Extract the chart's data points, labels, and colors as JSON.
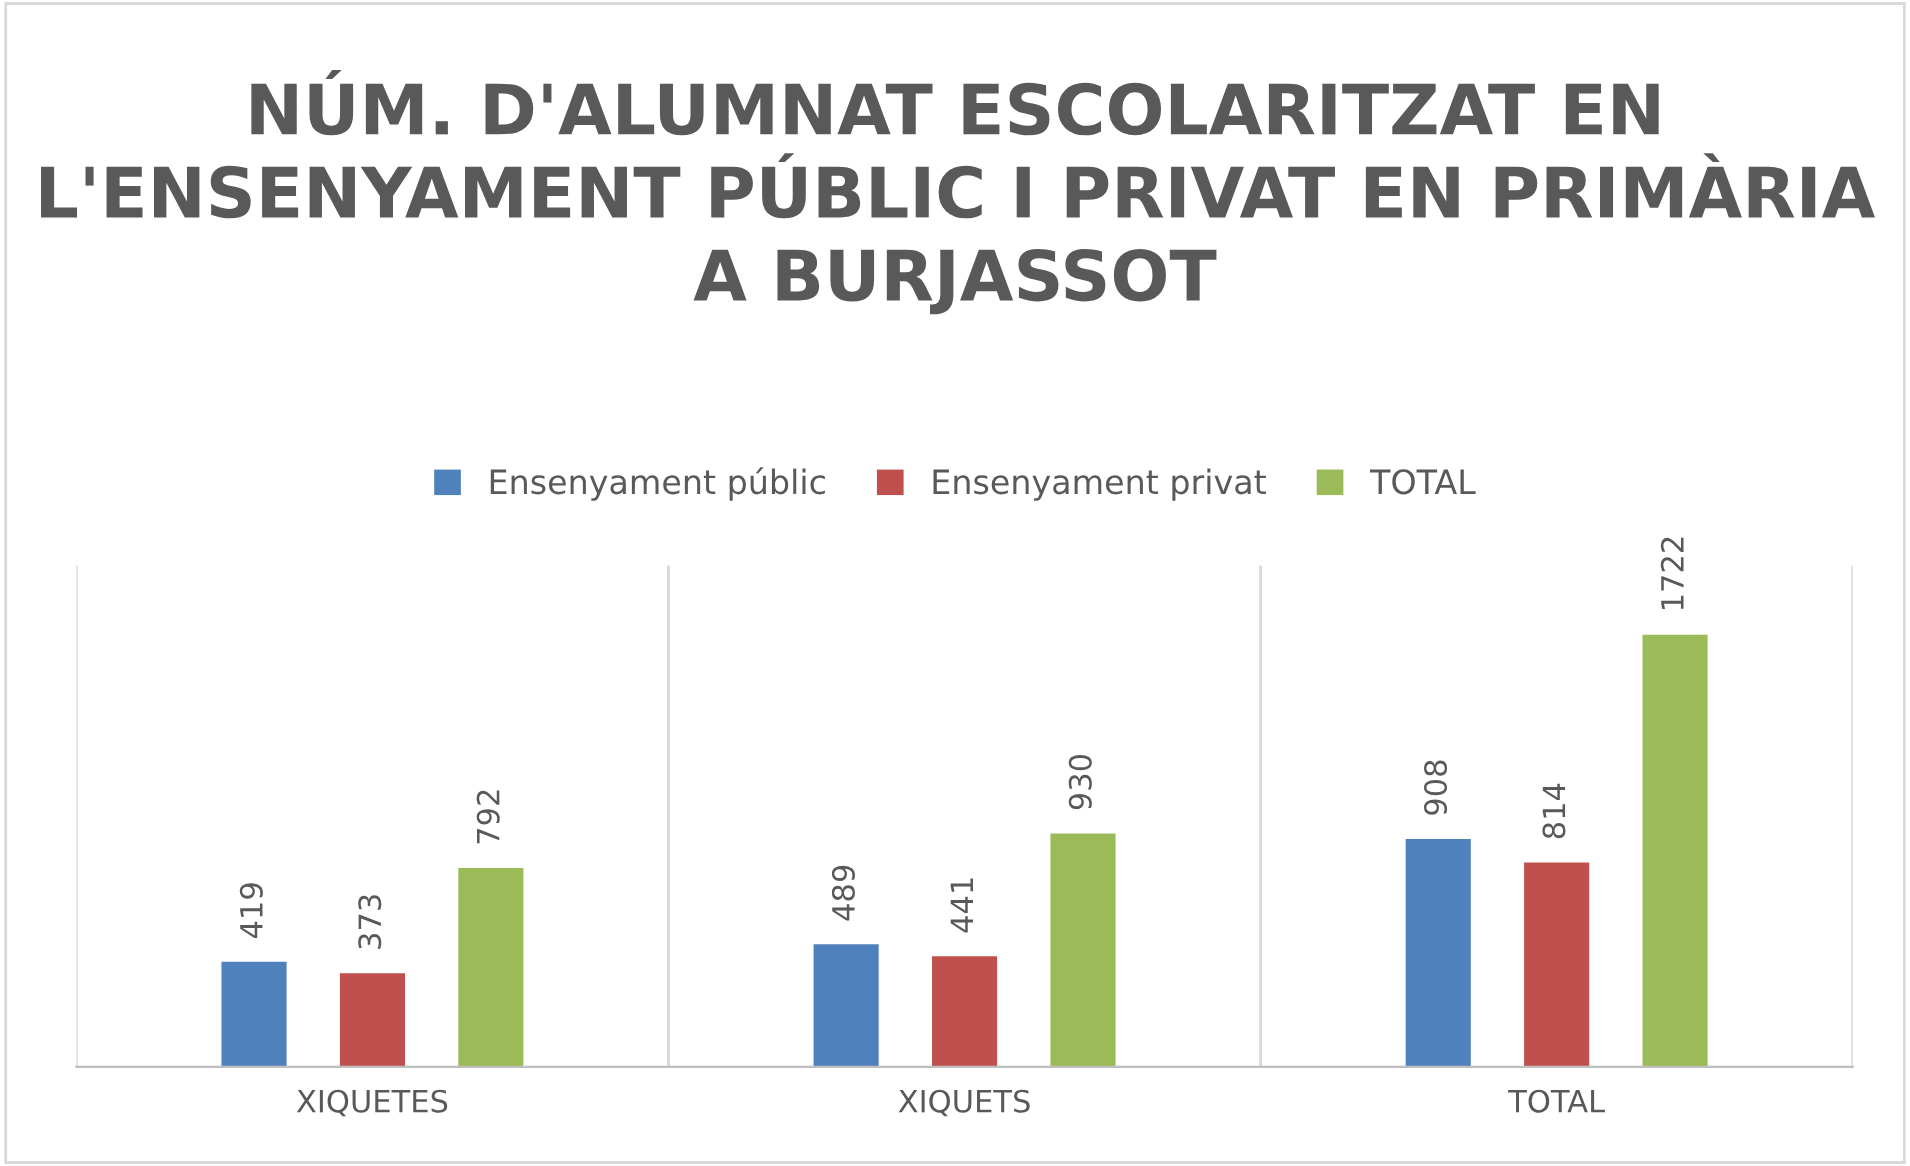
{
  "chart_data": {
    "type": "bar",
    "title": "NÚM. D'ALUMNAT ESCOLARITZAT EN L'ENSENYAMENT PÚBLIC I PRIVAT EN PRIMÀRIA A BURJASSOT",
    "categories": [
      "XIQUETES",
      "XIQUETS",
      "TOTAL"
    ],
    "series": [
      {
        "name": "Ensenyament públic",
        "color": "#4f81bd",
        "values": [
          419,
          489,
          908
        ]
      },
      {
        "name": "Ensenyament privat",
        "color": "#c0504d",
        "values": [
          373,
          441,
          814
        ]
      },
      {
        "name": "TOTAL",
        "color": "#9bbb59",
        "values": [
          792,
          930,
          1722
        ]
      }
    ],
    "data_labels": true,
    "grid": "x",
    "legend": "top",
    "tick_labels": "x"
  }
}
